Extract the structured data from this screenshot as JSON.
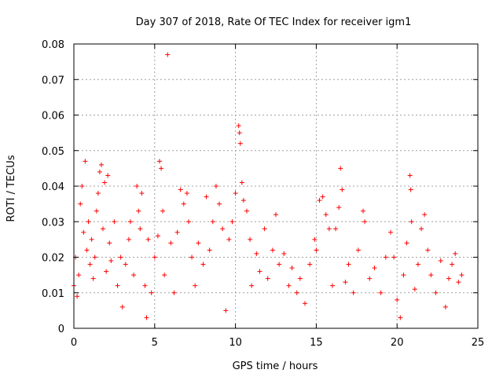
{
  "chart_data": {
    "type": "scatter",
    "title": "Day 307 of 2018, Rate Of TEC Index for receiver igm1",
    "xlabel": "GPS time / hours",
    "ylabel": "ROTI / TECUs",
    "xlim": [
      0,
      25
    ],
    "ylim": [
      0,
      0.08
    ],
    "xticks": [
      0,
      5,
      10,
      15,
      20,
      25
    ],
    "yticks": [
      0,
      0.01,
      0.02,
      0.03,
      0.04,
      0.05,
      0.06,
      0.07,
      0.08
    ],
    "xtick_labels": [
      "0",
      "5",
      "10",
      "15",
      "20",
      "25"
    ],
    "ytick_labels": [
      "0",
      "0.01",
      "0.02",
      "0.03",
      "0.04",
      "0.05",
      "0.06",
      "0.07",
      "0.08"
    ],
    "grid": true,
    "marker": "+",
    "color": "#ff0000",
    "series": [
      {
        "name": "ROTI",
        "points": [
          [
            0.0,
            0.012
          ],
          [
            0.1,
            0.02
          ],
          [
            0.2,
            0.009
          ],
          [
            0.3,
            0.015
          ],
          [
            0.4,
            0.035
          ],
          [
            0.5,
            0.04
          ],
          [
            0.6,
            0.027
          ],
          [
            0.7,
            0.047
          ],
          [
            0.8,
            0.022
          ],
          [
            0.9,
            0.03
          ],
          [
            1.0,
            0.018
          ],
          [
            1.1,
            0.025
          ],
          [
            1.2,
            0.014
          ],
          [
            1.3,
            0.02
          ],
          [
            1.4,
            0.033
          ],
          [
            1.5,
            0.038
          ],
          [
            1.6,
            0.044
          ],
          [
            1.7,
            0.046
          ],
          [
            1.8,
            0.028
          ],
          [
            1.9,
            0.041
          ],
          [
            2.0,
            0.016
          ],
          [
            2.1,
            0.043
          ],
          [
            2.2,
            0.024
          ],
          [
            2.3,
            0.019
          ],
          [
            2.5,
            0.03
          ],
          [
            2.7,
            0.012
          ],
          [
            2.9,
            0.02
          ],
          [
            3.0,
            0.006
          ],
          [
            3.2,
            0.018
          ],
          [
            3.4,
            0.025
          ],
          [
            3.5,
            0.03
          ],
          [
            3.7,
            0.015
          ],
          [
            3.9,
            0.04
          ],
          [
            4.0,
            0.033
          ],
          [
            4.1,
            0.028
          ],
          [
            4.2,
            0.038
          ],
          [
            4.4,
            0.012
          ],
          [
            4.5,
            0.003
          ],
          [
            4.6,
            0.025
          ],
          [
            4.8,
            0.01
          ],
          [
            5.0,
            0.02
          ],
          [
            5.2,
            0.026
          ],
          [
            5.3,
            0.047
          ],
          [
            5.4,
            0.045
          ],
          [
            5.5,
            0.033
          ],
          [
            5.6,
            0.015
          ],
          [
            5.8,
            0.077
          ],
          [
            6.0,
            0.024
          ],
          [
            6.2,
            0.01
          ],
          [
            6.4,
            0.027
          ],
          [
            6.6,
            0.039
          ],
          [
            6.8,
            0.035
          ],
          [
            7.0,
            0.038
          ],
          [
            7.1,
            0.03
          ],
          [
            7.3,
            0.02
          ],
          [
            7.5,
            0.012
          ],
          [
            7.7,
            0.024
          ],
          [
            8.0,
            0.018
          ],
          [
            8.2,
            0.037
          ],
          [
            8.4,
            0.022
          ],
          [
            8.6,
            0.03
          ],
          [
            8.8,
            0.04
          ],
          [
            9.0,
            0.035
          ],
          [
            9.2,
            0.028
          ],
          [
            9.4,
            0.005
          ],
          [
            9.6,
            0.025
          ],
          [
            9.8,
            0.03
          ],
          [
            10.0,
            0.038
          ],
          [
            10.2,
            0.057
          ],
          [
            10.25,
            0.055
          ],
          [
            10.3,
            0.052
          ],
          [
            10.4,
            0.041
          ],
          [
            10.5,
            0.036
          ],
          [
            10.7,
            0.033
          ],
          [
            10.9,
            0.025
          ],
          [
            11.0,
            0.012
          ],
          [
            11.3,
            0.021
          ],
          [
            11.5,
            0.016
          ],
          [
            11.8,
            0.028
          ],
          [
            12.0,
            0.014
          ],
          [
            12.3,
            0.022
          ],
          [
            12.5,
            0.032
          ],
          [
            12.7,
            0.018
          ],
          [
            13.0,
            0.021
          ],
          [
            13.3,
            0.012
          ],
          [
            13.5,
            0.017
          ],
          [
            13.8,
            0.01
          ],
          [
            14.0,
            0.014
          ],
          [
            14.3,
            0.007
          ],
          [
            14.6,
            0.018
          ],
          [
            14.9,
            0.025
          ],
          [
            15.0,
            0.022
          ],
          [
            15.2,
            0.036
          ],
          [
            15.4,
            0.037
          ],
          [
            15.6,
            0.032
          ],
          [
            15.8,
            0.028
          ],
          [
            16.0,
            0.012
          ],
          [
            16.2,
            0.028
          ],
          [
            16.4,
            0.034
          ],
          [
            16.5,
            0.045
          ],
          [
            16.6,
            0.039
          ],
          [
            16.8,
            0.013
          ],
          [
            17.0,
            0.018
          ],
          [
            17.3,
            0.01
          ],
          [
            17.6,
            0.022
          ],
          [
            17.9,
            0.033
          ],
          [
            18.0,
            0.03
          ],
          [
            18.3,
            0.014
          ],
          [
            18.6,
            0.017
          ],
          [
            19.0,
            0.01
          ],
          [
            19.3,
            0.02
          ],
          [
            19.6,
            0.027
          ],
          [
            19.8,
            0.02
          ],
          [
            20.0,
            0.008
          ],
          [
            20.2,
            0.003
          ],
          [
            20.4,
            0.015
          ],
          [
            20.6,
            0.024
          ],
          [
            20.8,
            0.043
          ],
          [
            20.85,
            0.039
          ],
          [
            20.9,
            0.03
          ],
          [
            21.1,
            0.011
          ],
          [
            21.3,
            0.018
          ],
          [
            21.5,
            0.028
          ],
          [
            21.7,
            0.032
          ],
          [
            21.9,
            0.022
          ],
          [
            22.1,
            0.015
          ],
          [
            22.4,
            0.01
          ],
          [
            22.7,
            0.019
          ],
          [
            23.0,
            0.006
          ],
          [
            23.2,
            0.014
          ],
          [
            23.4,
            0.018
          ],
          [
            23.6,
            0.021
          ],
          [
            23.8,
            0.013
          ],
          [
            24.0,
            0.015
          ]
        ]
      }
    ],
    "density_note_excluded": true
  }
}
